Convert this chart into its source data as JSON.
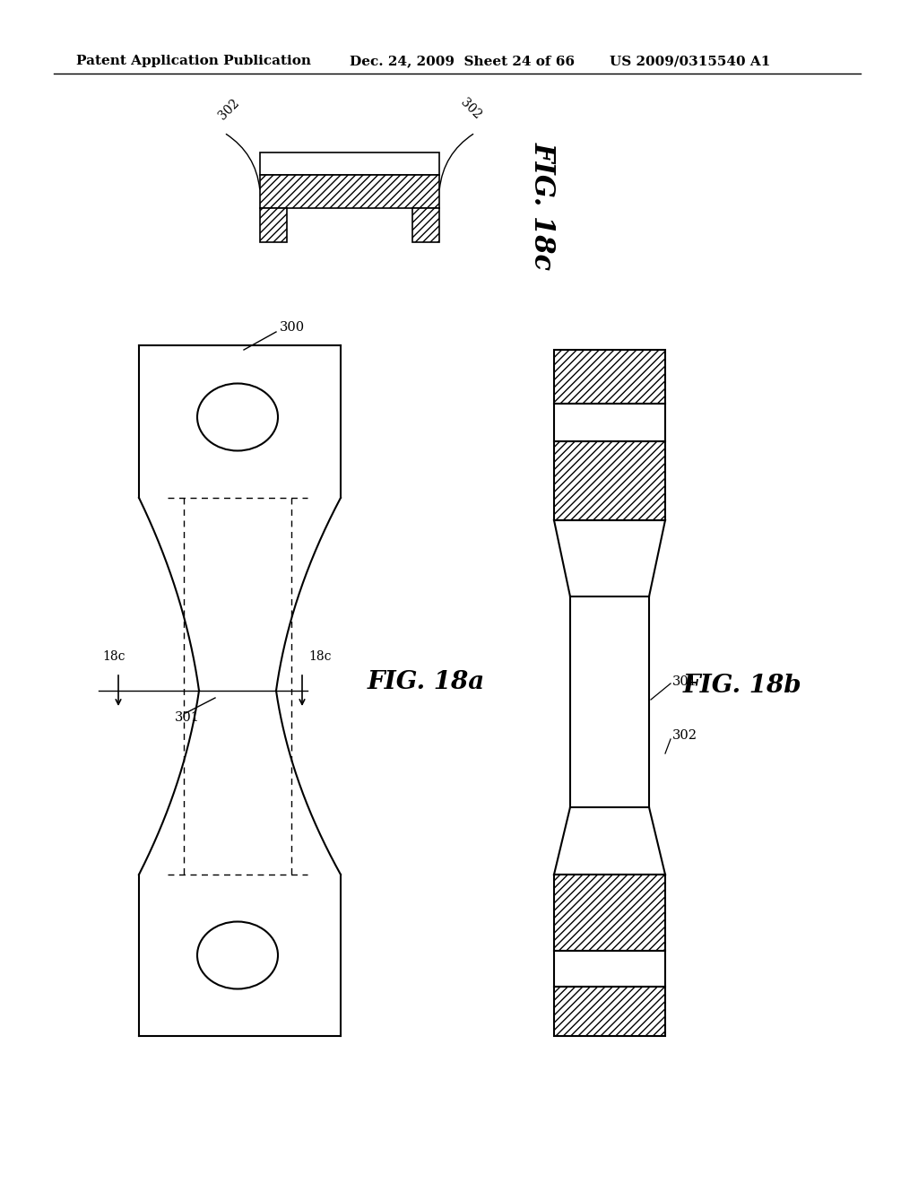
{
  "bg_color": "#ffffff",
  "header_left": "Patent Application Publication",
  "header_center": "Dec. 24, 2009  Sheet 24 of 66",
  "header_right": "US 2009/0315540 A1",
  "fig18a_label": "FIG. 18a",
  "fig18b_label": "FIG. 18b",
  "fig18c_label": "FIG. 18c",
  "label_300": "300",
  "label_301": "301",
  "label_302a": "302",
  "label_302b": "302",
  "label_18c_left": "18c",
  "label_18c_right": "18c"
}
